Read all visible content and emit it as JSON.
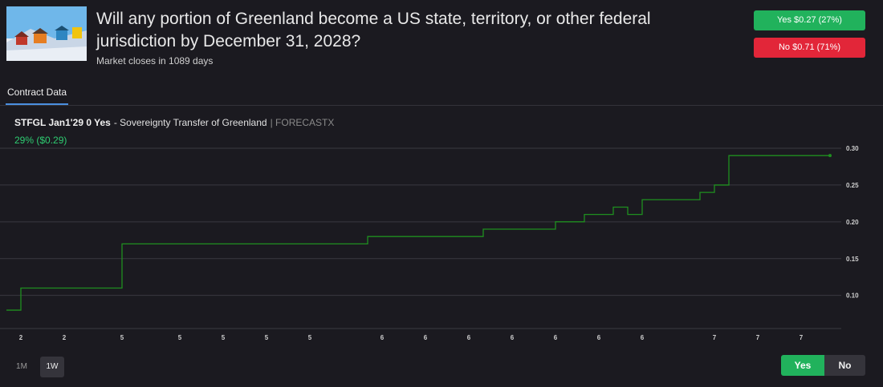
{
  "header": {
    "title": "Will any portion of Greenland become a US state, territory, or other federal jurisdiction by December 31, 2028?",
    "subtitle": "Market closes in 1089 days",
    "yes_button": "Yes $0.27 (27%)",
    "no_button": "No $0.71 (71%)"
  },
  "tabs": [
    "Contract Data"
  ],
  "contract": {
    "ticker": "STFGL Jan1'29 0 Yes",
    "name": "- Sovereignty Transfer of Greenland",
    "source": "| FORECASTX",
    "price": "29% ($0.29)"
  },
  "range_buttons": [
    "1M",
    "1W"
  ],
  "toggle": [
    "Yes",
    "No"
  ],
  "chart_data": {
    "type": "line",
    "step": true,
    "grid": true,
    "categories": [
      null,
      "2",
      null,
      null,
      "2",
      null,
      null,
      null,
      "5",
      null,
      null,
      null,
      "5",
      null,
      null,
      "5",
      null,
      null,
      "5",
      null,
      null,
      "5",
      null,
      null,
      null,
      null,
      "6",
      null,
      null,
      "6",
      null,
      null,
      "6",
      null,
      null,
      "6",
      null,
      null,
      "6",
      null,
      null,
      "6",
      null,
      null,
      "6",
      null,
      null,
      null,
      null,
      "7",
      null,
      null,
      "7",
      null,
      null,
      "7",
      null,
      null
    ],
    "series": [
      {
        "color": "#1f8f1f",
        "values": [
          0.08,
          0.11,
          0.11,
          0.11,
          0.11,
          0.11,
          0.11,
          0.11,
          0.17,
          0.17,
          0.17,
          0.17,
          0.17,
          0.17,
          0.17,
          0.17,
          0.17,
          0.17,
          0.17,
          0.17,
          0.17,
          0.17,
          0.17,
          0.17,
          0.17,
          0.18,
          0.18,
          0.18,
          0.18,
          0.18,
          0.18,
          0.18,
          0.18,
          0.19,
          0.19,
          0.19,
          0.19,
          0.19,
          0.2,
          0.2,
          0.21,
          0.21,
          0.22,
          0.21,
          0.23,
          0.23,
          0.23,
          0.23,
          0.24,
          0.25,
          0.29,
          0.29,
          0.29,
          0.29,
          0.29,
          0.29,
          0.29,
          0.29
        ]
      }
    ],
    "ylim": [
      0.055,
      0.3
    ],
    "yticks": [
      {
        "value": 0.1,
        "label": "0.10"
      },
      {
        "value": 0.15,
        "label": "0.15"
      },
      {
        "value": 0.2,
        "label": "0.20"
      },
      {
        "value": 0.25,
        "label": "0.25"
      },
      {
        "value": 0.3,
        "label": "0.30"
      }
    ]
  }
}
